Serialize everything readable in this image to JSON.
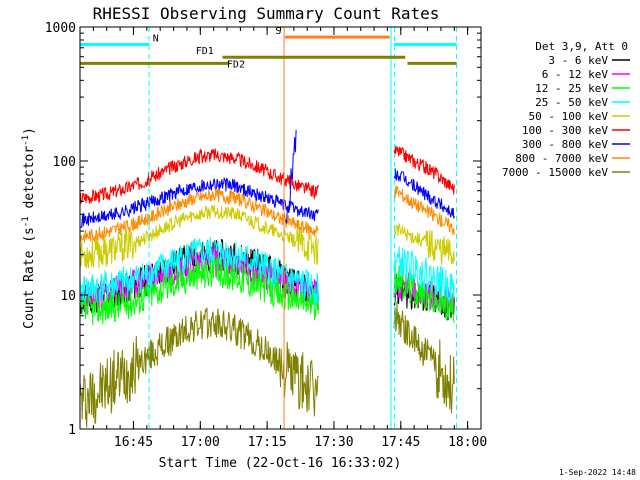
{
  "chart_data": {
    "type": "line",
    "title": "RHESSI Observing Summary Count Rates",
    "xlabel": "Start Time (22-Oct-16 16:33:02)",
    "ylabel_main": "Count Rate (s",
    "ylabel_sup1": "-1",
    "ylabel_mid": " detector",
    "ylabel_sup2": "-1",
    "ylabel_end": ")",
    "y_scale": "log",
    "ylim": [
      1,
      1000
    ],
    "xlim_minutes": [
      0,
      90
    ],
    "x_ticks": [
      {
        "label": "16:45",
        "t": 12
      },
      {
        "label": "17:00",
        "t": 27
      },
      {
        "label": "17:15",
        "t": 42
      },
      {
        "label": "17:30",
        "t": 57
      },
      {
        "label": "17:45",
        "t": 72
      },
      {
        "label": "18:00",
        "t": 87
      }
    ],
    "y_ticks": [
      {
        "label": "1",
        "v": 1
      },
      {
        "label": "10",
        "v": 10
      },
      {
        "label": "100",
        "v": 100
      },
      {
        "label": "1000",
        "v": 1000
      }
    ],
    "legend_header": "Det 3,9, Att 0",
    "legend_position": "right",
    "data_gap_minutes": [
      53.5,
      70.5
    ],
    "series": [
      {
        "name": "3 - 6 keV",
        "color": "#000000",
        "seed": 11,
        "x": [
          0,
          5,
          10,
          15,
          20,
          25,
          30,
          35,
          40,
          45,
          50,
          53,
          71,
          75,
          80,
          84
        ],
        "y": [
          9,
          10,
          11,
          13,
          16,
          19,
          20,
          19,
          17,
          14,
          11,
          10,
          11,
          10,
          9,
          8
        ]
      },
      {
        "name": "6 - 12 keV",
        "color": "#ff00ff",
        "seed": 23,
        "x": [
          0,
          5,
          10,
          15,
          20,
          25,
          30,
          35,
          40,
          45,
          50,
          53,
          71,
          75,
          80,
          84
        ],
        "y": [
          9,
          10,
          11,
          13,
          15,
          17,
          18,
          17,
          15,
          13,
          11,
          10,
          12,
          11,
          10,
          9
        ]
      },
      {
        "name": "12 - 25 keV",
        "color": "#00ff00",
        "seed": 37,
        "x": [
          0,
          5,
          10,
          15,
          20,
          25,
          30,
          35,
          40,
          45,
          50,
          53,
          71,
          75,
          80,
          84
        ],
        "y": [
          7.5,
          8,
          8.5,
          10,
          12,
          14,
          15,
          14,
          12,
          10,
          9,
          8.5,
          13,
          11,
          9,
          8
        ]
      },
      {
        "name": "25 - 50 keV",
        "color": "#00ffff",
        "seed": 41,
        "x": [
          0,
          5,
          10,
          15,
          20,
          25,
          30,
          35,
          40,
          45,
          50,
          53,
          71,
          75,
          80,
          84
        ],
        "y": [
          11,
          11.5,
          12.5,
          14,
          17,
          20,
          21,
          20,
          17,
          14,
          12,
          11,
          18,
          16,
          13,
          11
        ]
      },
      {
        "name": "50 - 100 keV",
        "color": "#cccc00",
        "seed": 53,
        "x": [
          0,
          5,
          10,
          15,
          20,
          25,
          30,
          35,
          40,
          45,
          50,
          53,
          71,
          75,
          80,
          84
        ],
        "y": [
          20,
          21,
          23,
          27,
          33,
          39,
          42,
          40,
          34,
          28,
          24,
          22,
          31,
          27,
          23,
          20
        ]
      },
      {
        "name": "100 - 300 keV",
        "color": "#ff0000",
        "seed": 67,
        "x": [
          0,
          5,
          10,
          15,
          20,
          25,
          30,
          35,
          40,
          45,
          50,
          53,
          71,
          75,
          80,
          84
        ],
        "y": [
          53,
          56,
          62,
          72,
          88,
          104,
          112,
          105,
          90,
          75,
          63,
          58,
          120,
          100,
          80,
          62
        ]
      },
      {
        "name": "300 - 800 keV",
        "color": "#0000ff",
        "seed": 71,
        "x": [
          0,
          5,
          10,
          15,
          20,
          25,
          30,
          35,
          40,
          45,
          50,
          53,
          71,
          75,
          80,
          84
        ],
        "y": [
          36,
          38,
          42,
          48,
          56,
          64,
          68,
          65,
          56,
          48,
          42,
          39,
          80,
          65,
          50,
          40
        ]
      },
      {
        "name": "800 - 7000 keV",
        "color": "#ff8c00",
        "seed": 83,
        "x": [
          0,
          5,
          10,
          15,
          20,
          25,
          30,
          35,
          40,
          45,
          50,
          53,
          71,
          75,
          80,
          84
        ],
        "y": [
          27,
          29,
          32,
          37,
          44,
          52,
          56,
          53,
          45,
          37,
          32,
          30,
          60,
          48,
          38,
          31
        ]
      },
      {
        "name": "7000 - 15000 keV",
        "color": "#808000",
        "seed": 97,
        "x": [
          0,
          5,
          10,
          15,
          20,
          25,
          30,
          35,
          40,
          45,
          50,
          53,
          71,
          75,
          80,
          84
        ],
        "y": [
          1.6,
          2,
          2.6,
          3.4,
          4.5,
          5.8,
          6.2,
          5.5,
          4.2,
          3,
          2.2,
          1.8,
          7,
          4.5,
          3,
          2
        ]
      }
    ],
    "flags": [
      {
        "name": "N",
        "label": "N",
        "color": "#00ffff",
        "level_value": 740,
        "segments": [
          [
            0,
            15.5
          ],
          [
            70.5,
            84.5
          ]
        ],
        "label_t": 17
      },
      {
        "name": "S",
        "label": "S",
        "color": "#ff7f27",
        "level_value": 840,
        "segments": [
          [
            46,
            69.5
          ]
        ],
        "label_t": 44.5
      },
      {
        "name": "FD1",
        "label": "FD1",
        "color": "#808000",
        "level_value": 595,
        "segments": [
          [
            32,
            73
          ]
        ],
        "label_t": 28
      },
      {
        "name": "FD2",
        "label": "FD2",
        "color": "#808000",
        "level_value": 535,
        "segments": [
          [
            0,
            33.5
          ],
          [
            73.5,
            84.5
          ]
        ],
        "label_t": 35
      }
    ],
    "vertical_markers": [
      {
        "t": 0,
        "color": "#00ffff",
        "style": "dashed"
      },
      {
        "t": 15.5,
        "color": "#00ffff",
        "style": "dashed"
      },
      {
        "t": 45.8,
        "color": "#ff7f27",
        "style": "solid"
      },
      {
        "t": 69.8,
        "color": "#00ffff",
        "style": "solid"
      },
      {
        "t": 70.6,
        "color": "#00ffff",
        "style": "dashed"
      },
      {
        "t": 84.5,
        "color": "#00ffff",
        "style": "dashed"
      }
    ],
    "spike": {
      "t_start": 46.2,
      "t_end": 48.5,
      "peak_value": 160
    }
  },
  "footer": {
    "timestamp": "1-Sep-2022 14:48"
  }
}
